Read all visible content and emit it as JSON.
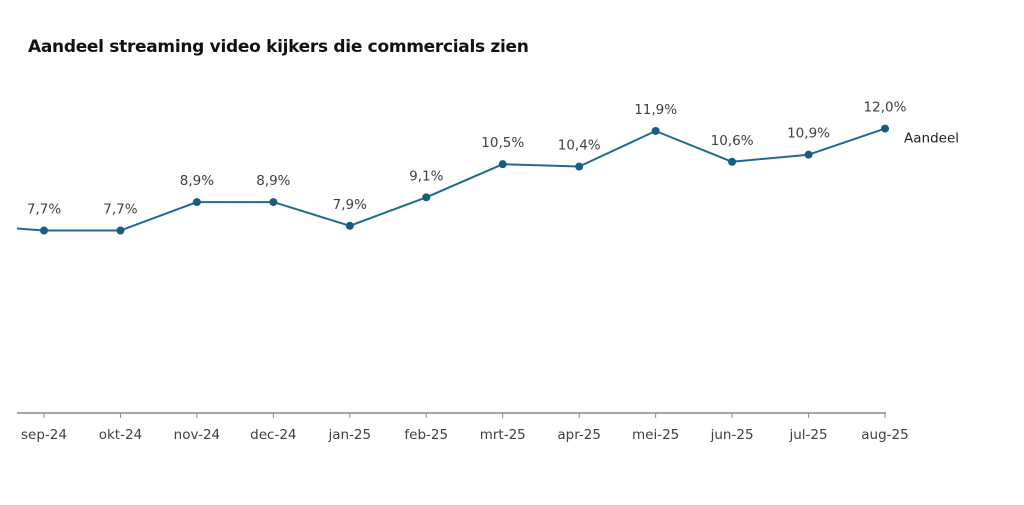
{
  "chart_data": {
    "type": "line",
    "title": "Aandeel streaming video kijkers die commercials zien",
    "categories": [
      "sep-24",
      "okt-24",
      "nov-24",
      "dec-24",
      "jan-25",
      "feb-25",
      "mrt-25",
      "apr-25",
      "mei-25",
      "jun-25",
      "jul-25",
      "aug-25"
    ],
    "series": [
      {
        "name": "Aandeel",
        "values": [
          7.7,
          7.7,
          8.9,
          8.9,
          7.9,
          9.1,
          10.5,
          10.4,
          11.9,
          10.6,
          10.9,
          12.0
        ],
        "labels": [
          "7,7%",
          "7,7%",
          "8,9%",
          "8,9%",
          "7,9%",
          "9,1%",
          "10,5%",
          "10,4%",
          "11,9%",
          "10,6%",
          "10,9%",
          "12,0%"
        ],
        "color": "#1f6a8f",
        "marker_color": "#175d80"
      }
    ],
    "xlabel": "",
    "ylabel": "",
    "ylim": [
      0,
      13
    ],
    "grid": false,
    "legend": "right-of-last-point",
    "axis_color": "#888888"
  }
}
